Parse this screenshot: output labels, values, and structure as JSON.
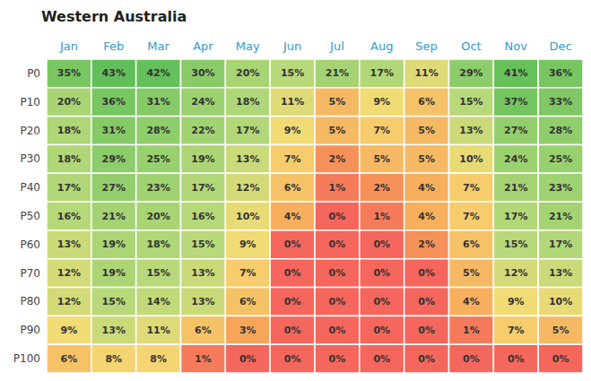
{
  "chart_data": {
    "type": "heatmap",
    "title": "Western Australia",
    "categories": [
      "Jan",
      "Feb",
      "Mar",
      "Apr",
      "May",
      "Jun",
      "Jul",
      "Aug",
      "Sep",
      "Oct",
      "Nov",
      "Dec"
    ],
    "rows": [
      "P0",
      "P10",
      "P20",
      "P30",
      "P40",
      "P50",
      "P60",
      "P70",
      "P80",
      "P90",
      "P100"
    ],
    "values": [
      [
        35,
        43,
        42,
        30,
        20,
        15,
        21,
        17,
        11,
        29,
        41,
        36
      ],
      [
        20,
        36,
        31,
        24,
        18,
        11,
        5,
        9,
        6,
        15,
        37,
        33
      ],
      [
        18,
        31,
        28,
        22,
        17,
        9,
        5,
        7,
        5,
        13,
        27,
        28
      ],
      [
        18,
        29,
        25,
        19,
        13,
        7,
        2,
        5,
        5,
        10,
        24,
        25
      ],
      [
        17,
        27,
        23,
        17,
        12,
        6,
        1,
        2,
        4,
        7,
        21,
        23
      ],
      [
        16,
        21,
        20,
        16,
        10,
        4,
        0,
        1,
        4,
        7,
        17,
        21
      ],
      [
        13,
        19,
        18,
        15,
        9,
        0,
        0,
        0,
        2,
        6,
        15,
        17
      ],
      [
        12,
        19,
        15,
        13,
        7,
        0,
        0,
        0,
        0,
        5,
        12,
        13
      ],
      [
        12,
        15,
        14,
        13,
        6,
        0,
        0,
        0,
        0,
        4,
        9,
        10
      ],
      [
        9,
        13,
        11,
        6,
        3,
        0,
        0,
        0,
        0,
        1,
        7,
        5
      ],
      [
        6,
        8,
        8,
        1,
        0,
        0,
        0,
        0,
        0,
        0,
        0,
        0
      ]
    ],
    "value_labels": [
      [
        "35%",
        "43%",
        "42%",
        "30%",
        "20%",
        "15%",
        "21%",
        "17%",
        "11%",
        "29%",
        "41%",
        "36%"
      ],
      [
        "20%",
        "36%",
        "31%",
        "24%",
        "18%",
        "11%",
        "5%",
        "9%",
        "6%",
        "15%",
        "37%",
        "33%"
      ],
      [
        "18%",
        "31%",
        "28%",
        "22%",
        "17%",
        "9%",
        "5%",
        "7%",
        "5%",
        "13%",
        "27%",
        "28%"
      ],
      [
        "18%",
        "29%",
        "25%",
        "19%",
        "13%",
        "7%",
        "2%",
        "5%",
        "5%",
        "10%",
        "24%",
        "25%"
      ],
      [
        "17%",
        "27%",
        "23%",
        "17%",
        "12%",
        "6%",
        "1%",
        "2%",
        "4%",
        "7%",
        "21%",
        "23%"
      ],
      [
        "16%",
        "21%",
        "20%",
        "16%",
        "10%",
        "4%",
        "0%",
        "1%",
        "4%",
        "7%",
        "17%",
        "21%"
      ],
      [
        "13%",
        "19%",
        "18%",
        "15%",
        "9%",
        "0%",
        "0%",
        "0%",
        "2%",
        "6%",
        "15%",
        "17%"
      ],
      [
        "12%",
        "19%",
        "15%",
        "13%",
        "7%",
        "0%",
        "0%",
        "0%",
        "0%",
        "5%",
        "12%",
        "13%"
      ],
      [
        "12%",
        "15%",
        "14%",
        "13%",
        "6%",
        "0%",
        "0%",
        "0%",
        "0%",
        "4%",
        "9%",
        "10%"
      ],
      [
        "9%",
        "13%",
        "11%",
        "6%",
        "3%",
        "0%",
        "0%",
        "0%",
        "0%",
        "1%",
        "7%",
        "5%"
      ],
      [
        "6%",
        "8%",
        "8%",
        "1%",
        "0%",
        "0%",
        "0%",
        "0%",
        "0%",
        "0%",
        "0%",
        "0%"
      ]
    ],
    "data_labels": true,
    "colorscale": {
      "range": [
        0,
        43
      ],
      "stops": [
        0.0,
        0.07,
        0.2,
        0.35,
        1.0
      ],
      "colors": [
        "#f5665c",
        "#f7a659",
        "#f5db75",
        "#b8d97a",
        "#61bf59"
      ]
    }
  }
}
